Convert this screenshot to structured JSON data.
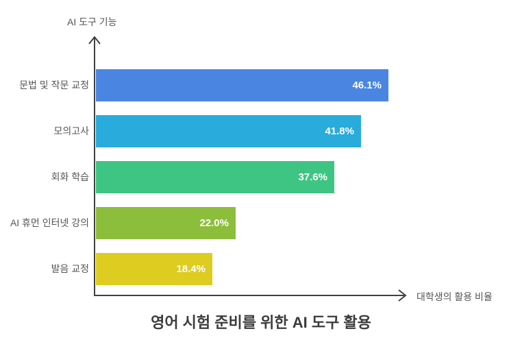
{
  "chart_data": {
    "type": "bar",
    "orientation": "horizontal",
    "title": "영어 시험 준비를 위한 AI 도구 활용",
    "y_axis_label": "AI 도구 기능",
    "x_axis_label": "대학생의 활용 비율",
    "categories": [
      "문법 및 작문 교정",
      "모의고사",
      "회화 학습",
      "AI 휴먼 인터넷 강의",
      "발음 교정"
    ],
    "values": [
      46.1,
      41.8,
      37.6,
      22.0,
      18.4
    ],
    "value_labels": [
      "46.1%",
      "41.8%",
      "37.6%",
      "22.0%",
      "18.4%"
    ],
    "bar_colors": [
      "#4A86E1",
      "#29ABDB",
      "#3EC583",
      "#8DBE3B",
      "#DECC20"
    ],
    "xlim": [
      0,
      50
    ],
    "grid": false,
    "legend": false,
    "axis_color": "#3F3F3F",
    "label_color": "#555555",
    "value_text_color": "#FFFFFF",
    "title_color": "#3B3B3B"
  }
}
